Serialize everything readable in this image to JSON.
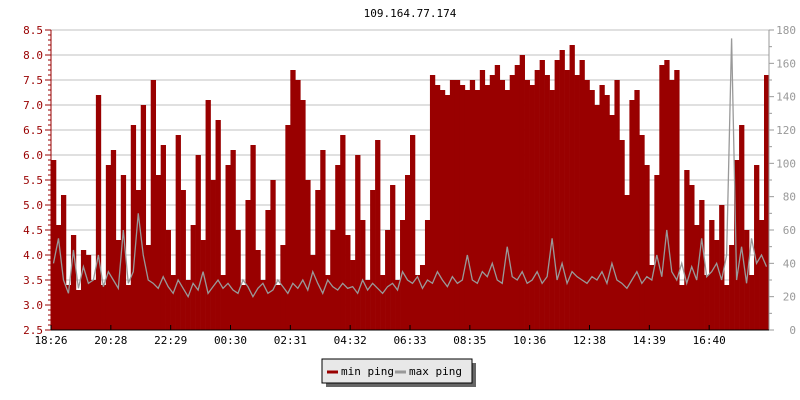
{
  "chart_data": {
    "type": "bar",
    "title": "109.164.77.174",
    "x_ticks": [
      "18:26",
      "20:28",
      "22:29",
      "00:30",
      "02:31",
      "04:32",
      "06:33",
      "08:35",
      "10:36",
      "12:38",
      "14:39",
      "16:40"
    ],
    "x_range": [
      "18:26",
      "18:20"
    ],
    "ylim_left": [
      2.5,
      8.5
    ],
    "yticks_left": [
      "2.5",
      "3.0",
      "3.5",
      "4.0",
      "4.5",
      "5.0",
      "5.5",
      "6.0",
      "6.5",
      "7.0",
      "7.5",
      "8.0",
      "8.5"
    ],
    "ylim_right": [
      0,
      180
    ],
    "yticks_right": [
      "0",
      "20",
      "40",
      "60",
      "80",
      "100",
      "120",
      "140",
      "160",
      "180"
    ],
    "grid": true,
    "legend_placement": "bottom",
    "series": [
      {
        "name": "min ping",
        "axis": "left",
        "style": "bars",
        "color": "#990000",
        "values": [
          5.9,
          4.6,
          5.2,
          3.4,
          4.4,
          3.3,
          4.1,
          4.0,
          3.5,
          7.2,
          3.4,
          5.8,
          6.1,
          4.3,
          5.6,
          3.4,
          6.6,
          5.3,
          7.0,
          4.2,
          7.5,
          5.6,
          6.2,
          4.5,
          3.6,
          6.4,
          5.3,
          3.5,
          4.6,
          6.0,
          4.3,
          7.1,
          5.5,
          6.7,
          3.6,
          5.8,
          6.1,
          4.5,
          3.4,
          5.1,
          6.2,
          4.1,
          3.5,
          4.9,
          5.5,
          3.4,
          4.2,
          6.6,
          7.7,
          7.5,
          7.1,
          5.5,
          4.0,
          5.3,
          6.1,
          3.6,
          4.5,
          5.8,
          6.4,
          4.4,
          3.9,
          6.0,
          4.7,
          3.5,
          5.3,
          6.3,
          3.6,
          4.5,
          5.4,
          3.5,
          4.7,
          5.6,
          6.4,
          3.6,
          3.8,
          4.7,
          7.6,
          7.4,
          7.3,
          7.2,
          7.5,
          7.5,
          7.4,
          7.3,
          7.5,
          7.3,
          7.7,
          7.4,
          7.6,
          7.8,
          7.5,
          7.3,
          7.6,
          7.8,
          8.0,
          7.5,
          7.4,
          7.7,
          7.9,
          7.6,
          7.3,
          7.9,
          8.1,
          7.7,
          8.2,
          7.6,
          7.9,
          7.5,
          7.3,
          7.0,
          7.4,
          7.2,
          6.8,
          7.5,
          6.3,
          5.2,
          7.1,
          7.3,
          6.4,
          5.8,
          3.8,
          5.6,
          7.8,
          7.9,
          7.5,
          7.7,
          3.4,
          5.7,
          5.4,
          4.6,
          5.1,
          3.6,
          4.7,
          4.3,
          5.0,
          3.4,
          4.2,
          5.9,
          6.6,
          4.5,
          3.6,
          5.8,
          4.7,
          7.6
        ]
      },
      {
        "name": "max ping",
        "axis": "right",
        "style": "line",
        "color": "#999999",
        "values": [
          40,
          55,
          30,
          22,
          48,
          25,
          38,
          28,
          30,
          45,
          26,
          35,
          30,
          25,
          60,
          28,
          35,
          70,
          45,
          30,
          28,
          25,
          32,
          26,
          22,
          30,
          25,
          20,
          28,
          24,
          35,
          22,
          26,
          30,
          25,
          28,
          24,
          22,
          30,
          26,
          20,
          25,
          28,
          22,
          24,
          30,
          26,
          22,
          28,
          25,
          30,
          24,
          35,
          28,
          22,
          30,
          26,
          24,
          28,
          25,
          26,
          22,
          30,
          24,
          28,
          25,
          22,
          26,
          28,
          24,
          35,
          30,
          28,
          32,
          25,
          30,
          28,
          35,
          30,
          26,
          32,
          28,
          30,
          45,
          30,
          28,
          35,
          32,
          40,
          30,
          28,
          50,
          32,
          30,
          35,
          28,
          30,
          35,
          28,
          32,
          55,
          30,
          40,
          28,
          35,
          32,
          30,
          28,
          32,
          30,
          35,
          28,
          40,
          30,
          28,
          25,
          30,
          35,
          28,
          32,
          30,
          45,
          32,
          60,
          35,
          30,
          40,
          28,
          38,
          30,
          55,
          32,
          35,
          40,
          30,
          45,
          175,
          30,
          50,
          28,
          55,
          40,
          45,
          38
        ]
      }
    ]
  }
}
